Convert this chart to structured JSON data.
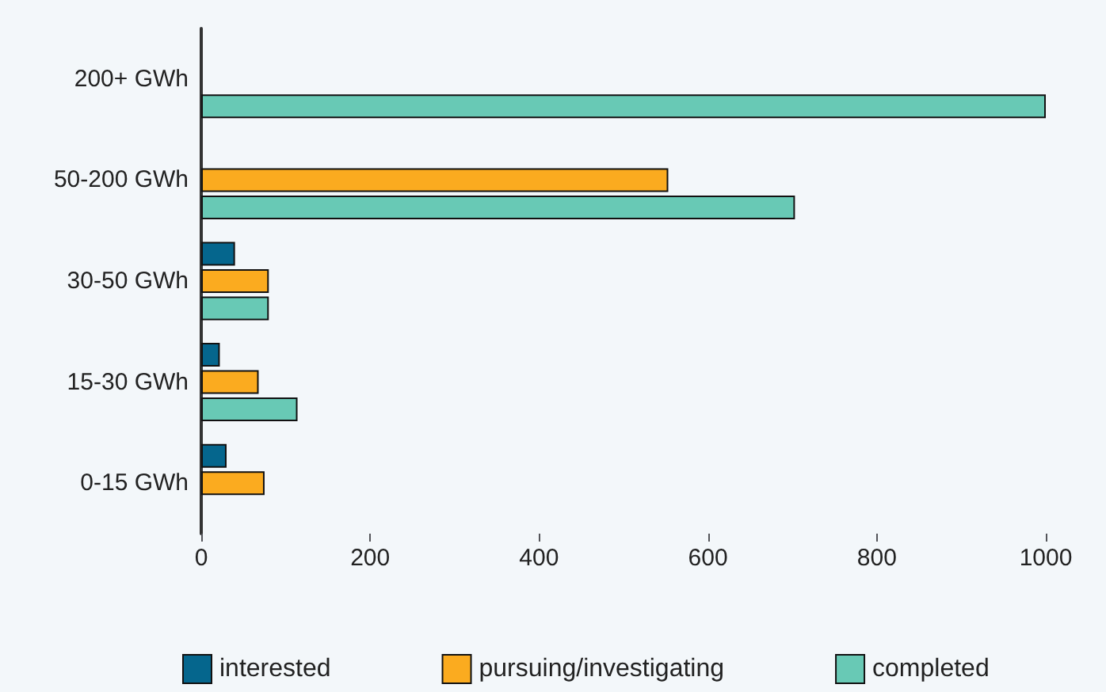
{
  "chart_data": {
    "type": "bar",
    "orientation": "horizontal",
    "categories": [
      "200+ GWh",
      "50-200 GWh",
      "30-50 GWh",
      "15-30 GWh",
      "0-15 GWh"
    ],
    "series": [
      {
        "name": "interested",
        "color": "#05668d",
        "values": [
          null,
          null,
          40,
          22,
          30
        ]
      },
      {
        "name": "pursuing/investigating",
        "color": "#fbab1f",
        "values": [
          null,
          553,
          80,
          68,
          75
        ]
      },
      {
        "name": "completed",
        "color": "#68c9b5",
        "values": [
          1000,
          703,
          80,
          114,
          null
        ]
      }
    ],
    "xlim": [
      0,
      1000
    ],
    "xticks": [
      0,
      200,
      400,
      600,
      800,
      1000
    ],
    "grid": false,
    "legend": "bottom"
  }
}
